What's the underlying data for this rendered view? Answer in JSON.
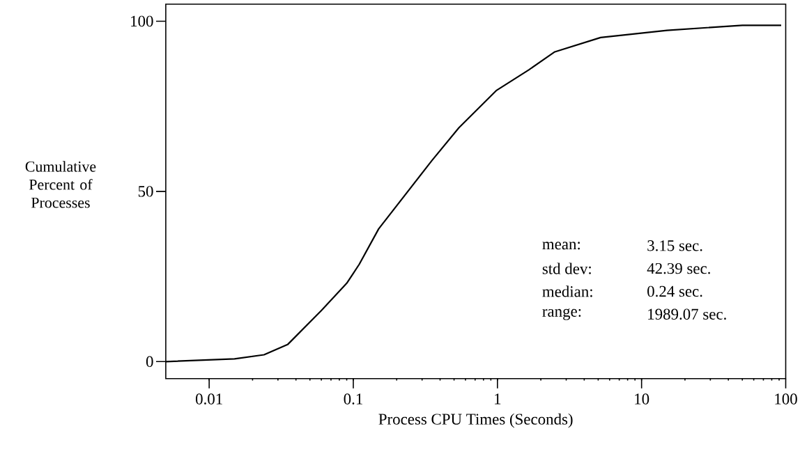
{
  "chart_data": {
    "type": "line",
    "xlabel": "Process CPU Times (Seconds)",
    "ylabel": "Cumulative Percent of Processes",
    "log": "x",
    "x": [
      0.005,
      0.015,
      0.024,
      0.035,
      0.06,
      0.09,
      0.11,
      0.15,
      0.35,
      0.54,
      0.98,
      1.65,
      2.5,
      5.2,
      15,
      50,
      93
    ],
    "series": [
      {
        "color": "#000000",
        "values": [
          0,
          0.8,
          2,
          5,
          15,
          23,
          28.6,
          39,
          59,
          68.7,
          79.6,
          85.7,
          91,
          95.2,
          97.3,
          98.8,
          98.8
        ]
      }
    ],
    "xlim": [
      0.005,
      100
    ],
    "xticks": [
      0.01,
      0.1,
      1,
      10,
      100
    ],
    "ylim": [
      -5,
      105
    ],
    "yticks": [
      0,
      50,
      100
    ],
    "annotations": [
      "mean:",
      "3.15 sec.",
      "std dev:",
      "42.39 sec.",
      "median:",
      "0.24 sec.",
      "range:",
      "1989.07 sec."
    ]
  }
}
